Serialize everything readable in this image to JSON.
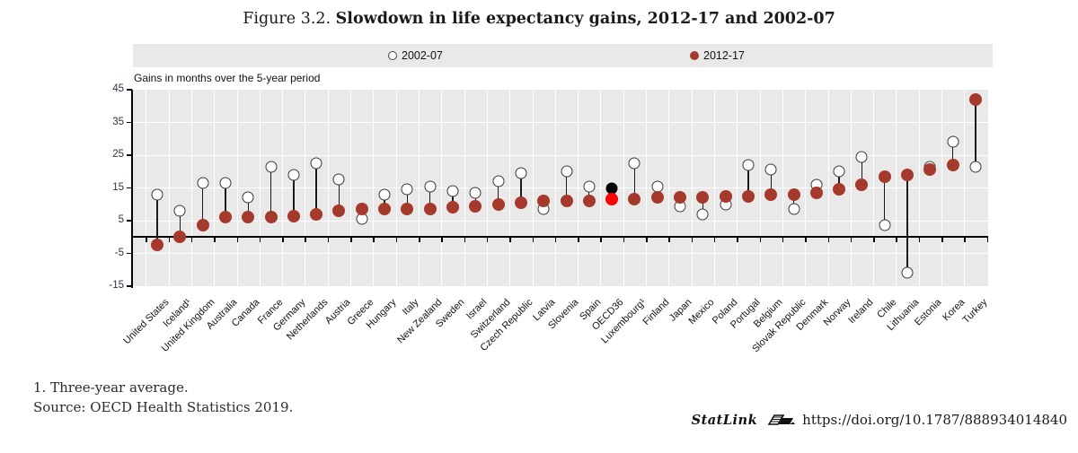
{
  "figure": {
    "label": "Figure 3.2.",
    "title": "Slowdown in life expectancy gains, 2012-17 and 2002-07"
  },
  "notes": {
    "footnote": "1. Three-year average.",
    "source": "Source: OECD Health Statistics 2019."
  },
  "statlink": {
    "label": "StatLink",
    "url": "https://doi.org/10.1787/888934014840"
  },
  "colors": {
    "series_2012_17": "#a5392b",
    "series_2002_07_fill": "#ffffff",
    "marker_stroke": "#3a3a3a",
    "oecd_highlight_2012_17": "#ff0000",
    "oecd_highlight_2002_07": "#000000",
    "plot_background": "#e9e9e9",
    "gridline": "#ffffff"
  },
  "chart_data": {
    "type": "scatter",
    "subtype": "dumbbell-lollipop",
    "title": "Figure 3.2. Slowdown in life expectancy gains, 2012-17 and 2002-07",
    "ylabel": "Gains in months over the 5-year period",
    "xlabel": "",
    "ylim": [
      -15,
      45
    ],
    "yticks": [
      45,
      35,
      25,
      15,
      5,
      -5,
      -15
    ],
    "grid": true,
    "legend_position": "top",
    "categories": [
      "United States",
      "Iceland¹",
      "United Kingdom",
      "Australia",
      "Canada",
      "France",
      "Germany",
      "Netherlands",
      "Austria",
      "Greece",
      "Hungary",
      "Italy",
      "New Zealand",
      "Sweden",
      "Israel",
      "Switzerland",
      "Czech Republic",
      "Latvia",
      "Slovenia",
      "Spain",
      "OECD36",
      "Luxembourg¹",
      "Finland",
      "Japan",
      "Mexico",
      "Poland",
      "Portugal",
      "Belgium",
      "Slovak Republic",
      "Denmark",
      "Norway",
      "Ireland",
      "Chile",
      "Lithuania",
      "Estonia",
      "Korea",
      "Turkey"
    ],
    "series": [
      {
        "name": "2002-07",
        "marker": "open-circle",
        "values": [
          13,
          8,
          16.5,
          16.5,
          12,
          21.5,
          19,
          22.5,
          17.5,
          5.5,
          13,
          14.5,
          15.5,
          14,
          13.5,
          17,
          19.5,
          8.5,
          20,
          15.5,
          15,
          22.5,
          15.5,
          9.5,
          7,
          10,
          22,
          20.5,
          8.5,
          16,
          20,
          24.5,
          3.5,
          -11,
          21.5,
          29,
          21.5
        ]
      },
      {
        "name": "2012-17",
        "marker": "filled-circle",
        "values": [
          -2.5,
          0,
          3.5,
          6,
          6,
          6,
          6.5,
          7,
          8,
          8.5,
          8.5,
          8.5,
          8.5,
          9,
          9.5,
          10,
          10.5,
          11,
          11,
          11,
          11.5,
          11.5,
          12,
          12,
          12,
          12.5,
          12.5,
          13,
          13,
          13.5,
          14.5,
          16,
          18.5,
          19,
          20.5,
          22,
          42
        ]
      }
    ],
    "highlight_category": "OECD36"
  }
}
